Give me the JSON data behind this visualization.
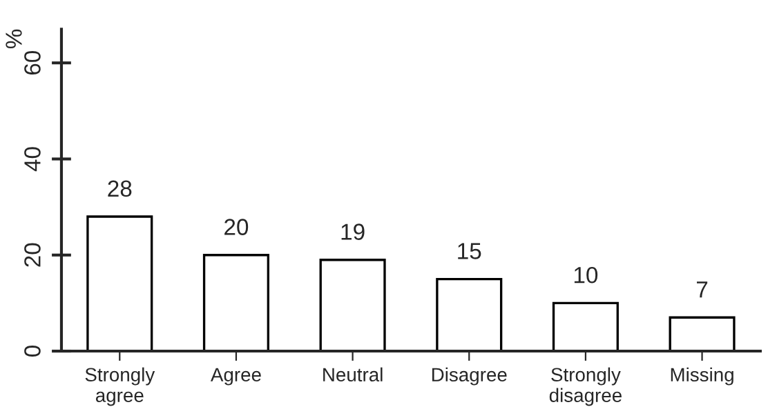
{
  "chart_data": {
    "type": "bar",
    "categories": [
      "Strongly\nagree",
      "Agree",
      "Neutral",
      "Disagree",
      "Strongly\ndisagree",
      "Missing"
    ],
    "values": [
      28,
      20,
      19,
      15,
      10,
      7
    ],
    "color": "#ffffff",
    "ylabel": "%",
    "ylim": [
      0,
      67
    ],
    "yticks": [
      0,
      20,
      40,
      60
    ],
    "data_labels": true,
    "grid": false,
    "legend": false
  }
}
